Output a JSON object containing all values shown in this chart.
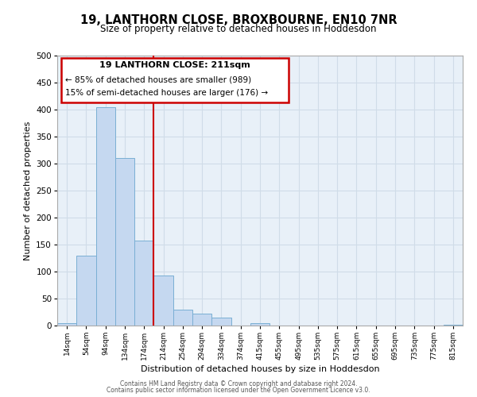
{
  "title": "19, LANTHORN CLOSE, BROXBOURNE, EN10 7NR",
  "subtitle": "Size of property relative to detached houses in Hoddesdon",
  "xlabel": "Distribution of detached houses by size in Hoddesdon",
  "ylabel": "Number of detached properties",
  "bar_labels": [
    "14sqm",
    "54sqm",
    "94sqm",
    "134sqm",
    "174sqm",
    "214sqm",
    "254sqm",
    "294sqm",
    "334sqm",
    "374sqm",
    "415sqm",
    "455sqm",
    "495sqm",
    "535sqm",
    "575sqm",
    "615sqm",
    "655sqm",
    "695sqm",
    "735sqm",
    "775sqm",
    "815sqm"
  ],
  "bar_heights": [
    5,
    130,
    405,
    310,
    157,
    93,
    30,
    22,
    14,
    0,
    5,
    0,
    0,
    0,
    0,
    0,
    0,
    0,
    0,
    0,
    2
  ],
  "bar_color": "#c5d8f0",
  "bar_edge_color": "#7aafd4",
  "grid_color": "#d0dce8",
  "bg_color": "#e8f0f8",
  "vline_x_index": 5.0,
  "vline_color": "#cc0000",
  "annotation_title": "19 LANTHORN CLOSE: 211sqm",
  "annotation_line1": "← 85% of detached houses are smaller (989)",
  "annotation_line2": "15% of semi-detached houses are larger (176) →",
  "annotation_box_color": "#cc0000",
  "ylim": [
    0,
    500
  ],
  "yticks": [
    0,
    50,
    100,
    150,
    200,
    250,
    300,
    350,
    400,
    450,
    500
  ],
  "footer1": "Contains HM Land Registry data © Crown copyright and database right 2024.",
  "footer2": "Contains public sector information licensed under the Open Government Licence v3.0."
}
